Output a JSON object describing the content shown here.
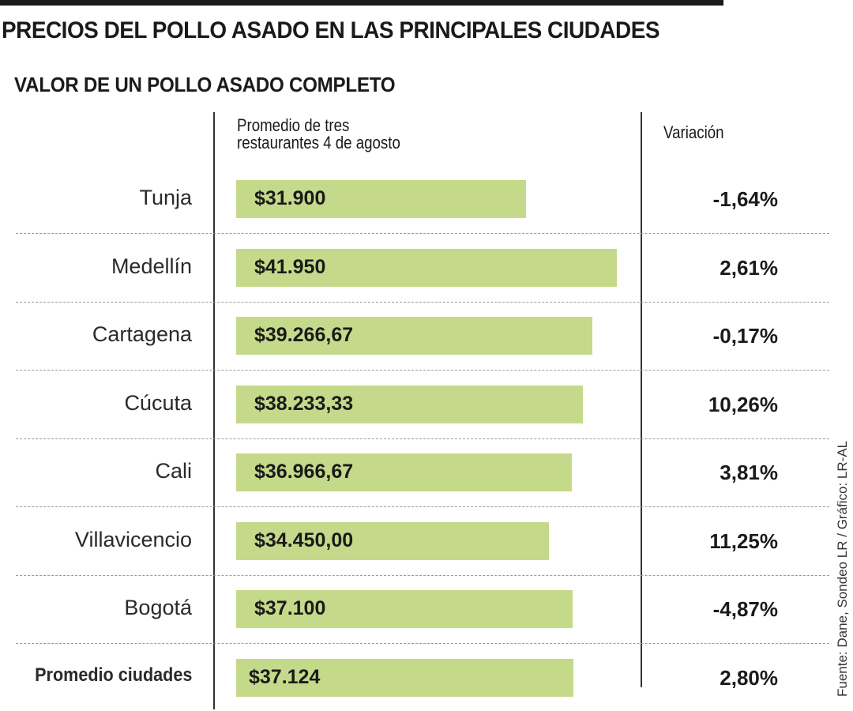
{
  "header": {
    "title": "PRECIOS DEL POLLO ASADO EN LAS PRINCIPALES CIUDADES",
    "subtitle": "VALOR DE UN POLLO ASADO COMPLETO"
  },
  "columns": {
    "price_header_line1": "Promedio de tres",
    "price_header_line2": "restaurantes 4 de agosto",
    "variation_header": "Variación"
  },
  "chart_data": {
    "type": "bar",
    "orientation": "horizontal",
    "title": "VALOR DE UN POLLO ASADO COMPLETO",
    "categories": [
      "Tunja",
      "Medellín",
      "Cartagena",
      "Cúcuta",
      "Cali",
      "Villavicencio",
      "Bogotá",
      "Promedio ciudades"
    ],
    "values": [
      31900,
      41950,
      39266.67,
      38233.33,
      36966.67,
      34450.0,
      37100,
      37124
    ],
    "value_labels": [
      "$31.900",
      "$41.950",
      "$39.266,67",
      "$38.233,33",
      "$36.966,67",
      "$34.450,00",
      "$37.100",
      "$37.124"
    ],
    "variation": [
      "-1,64%",
      "2,61%",
      "-0,17%",
      "10,26%",
      "3,81%",
      "11,25%",
      "-4,87%",
      "2,80%"
    ],
    "highlight_category": "Promedio ciudades",
    "bar_color": "#c5d98a",
    "grid": false
  },
  "source": "Fuente: Dane, Sondeo LR / Gráfico: LR-AL"
}
